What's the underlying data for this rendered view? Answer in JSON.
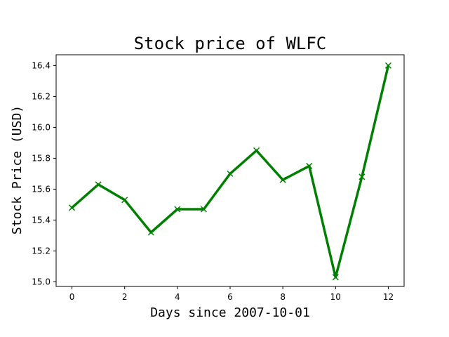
{
  "chart_data": {
    "type": "line",
    "title": "Stock price of WLFC",
    "xlabel": "Days since 2007-10-01",
    "ylabel": "Stock Price (USD)",
    "xlim": [
      -0.6,
      12.6
    ],
    "ylim": [
      14.97,
      16.47
    ],
    "x_ticks": [
      0,
      2,
      4,
      6,
      8,
      10,
      12
    ],
    "y_ticks": [
      15.0,
      15.2,
      15.4,
      15.6,
      15.8,
      16.0,
      16.2,
      16.4
    ],
    "grid": false,
    "series": [
      {
        "x": [
          0,
          1,
          2,
          3,
          4,
          5,
          6,
          7,
          8,
          9,
          10,
          11,
          12
        ],
        "y": [
          15.48,
          15.63,
          15.53,
          15.32,
          15.47,
          15.47,
          15.7,
          15.85,
          15.66,
          15.75,
          15.03,
          15.68,
          16.4
        ],
        "color": "#008000",
        "marker": "x"
      }
    ]
  }
}
